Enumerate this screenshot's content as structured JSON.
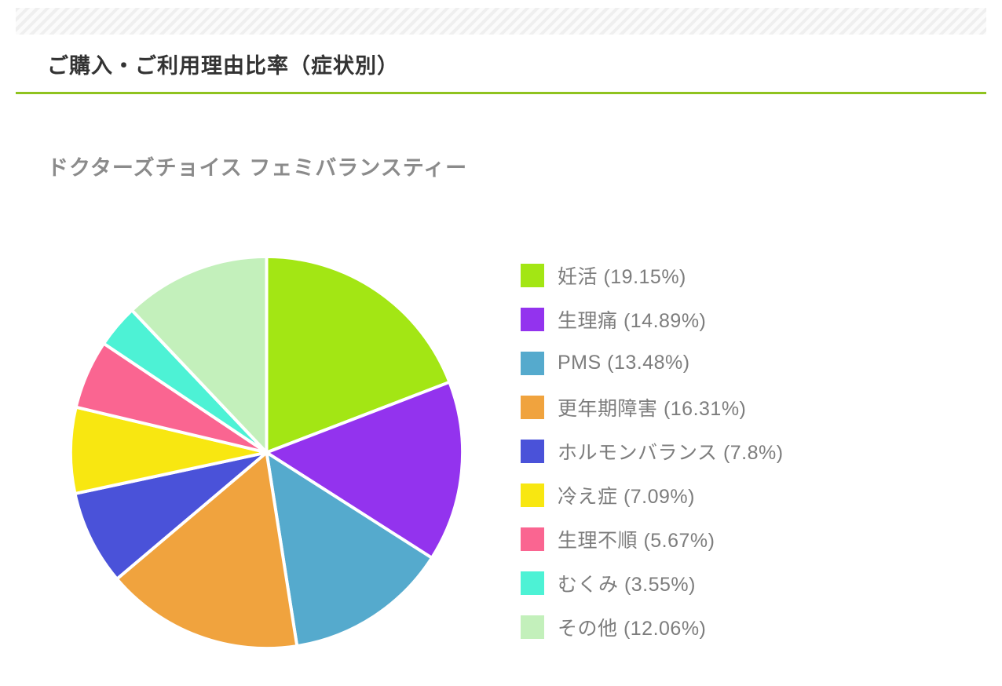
{
  "page": {
    "title": "ご購入・ご利用理由比率（症状別）",
    "subtitle": "ドクターズチョイス フェミバランスティー"
  },
  "colors": {
    "accent_rule": "#8fc31f",
    "title_text": "#333333",
    "subtitle_text": "#8b8b8b",
    "legend_text": "#7d7d7d",
    "slice_gap": "#ffffff"
  },
  "chart_data": {
    "type": "pie",
    "title": "ドクターズチョイス フェミバランスティー",
    "labels": [
      "妊活",
      "生理痛",
      "PMS",
      "更年期障害",
      "ホルモンバランス",
      "冷え症",
      "生理不順",
      "むくみ",
      "その他"
    ],
    "values": [
      19.15,
      14.89,
      13.48,
      16.31,
      7.8,
      7.09,
      5.67,
      3.55,
      12.06
    ],
    "colors": [
      "#a3e614",
      "#9333ee",
      "#55aacd",
      "#f0a33e",
      "#4a52d9",
      "#f8e711",
      "#fa6591",
      "#4df2d5",
      "#c3f0bb"
    ],
    "legend": [
      "妊活 (19.15%)",
      "生理痛 (14.89%)",
      "PMS (13.48%)",
      "更年期障害 (16.31%)",
      "ホルモンバランス (7.8%)",
      "冷え症 (7.09%)",
      "生理不順 (5.67%)",
      "むくみ (3.55%)",
      "その他 (12.06%)"
    ],
    "legend_position": "right",
    "start_angle_deg": -90,
    "direction": "clockwise"
  }
}
